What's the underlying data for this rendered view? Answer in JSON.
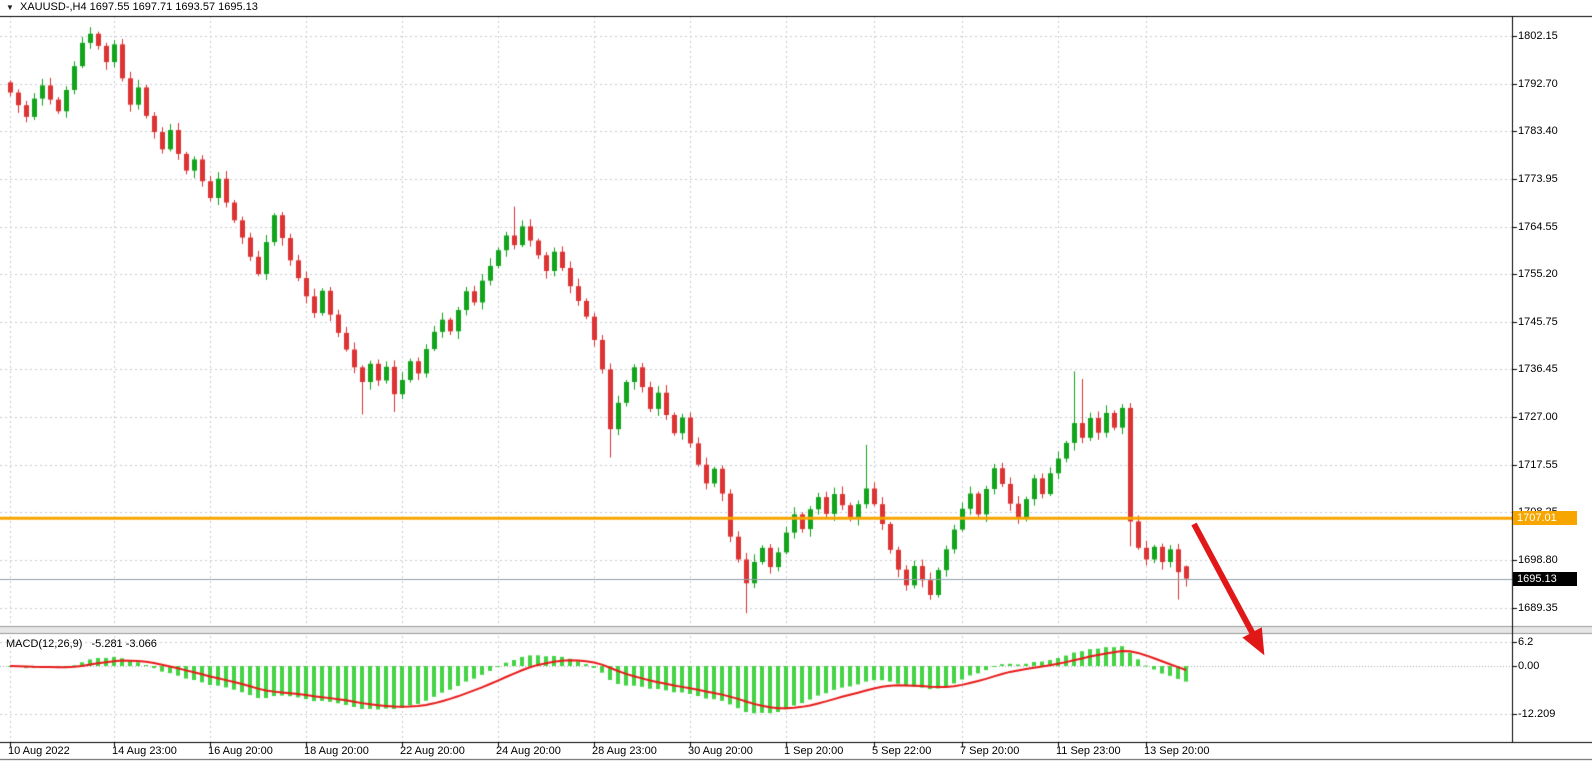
{
  "header": {
    "dropdown_icon": "▼",
    "symbol": "XAUUSD-,H4",
    "ohlc": "1697.55 1697.71 1693.57 1695.13"
  },
  "indicator": {
    "name": "MACD(12,26,9)",
    "values": "-5.281 -3.066"
  },
  "price_axis": {
    "ticks": [
      "1802.15",
      "1792.70",
      "1783.40",
      "1773.95",
      "1764.55",
      "1755.20",
      "1745.75",
      "1736.45",
      "1727.00",
      "1717.55",
      "1708.25",
      "1698.80",
      "1689.35"
    ],
    "hline_tag": "1707.01",
    "current_tag": "1695.13"
  },
  "macd_axis": {
    "ticks": [
      "6.2",
      "0.00",
      "-12.209"
    ]
  },
  "time_axis": {
    "labels": [
      {
        "text": "10 Aug 2022",
        "i": 0
      },
      {
        "text": "14 Aug 23:00",
        "i": 13
      },
      {
        "text": "16 Aug 20:00",
        "i": 25
      },
      {
        "text": "18 Aug 20:00",
        "i": 37
      },
      {
        "text": "22 Aug 20:00",
        "i": 49
      },
      {
        "text": "24 Aug 20:00",
        "i": 61
      },
      {
        "text": "28 Aug 23:00",
        "i": 73
      },
      {
        "text": "30 Aug 20:00",
        "i": 85
      },
      {
        "text": "1 Sep 20:00",
        "i": 97
      },
      {
        "text": "5 Sep 22:00",
        "i": 108
      },
      {
        "text": "7 Sep 20:00",
        "i": 119
      },
      {
        "text": "11 Sep 23:00",
        "i": 131
      },
      {
        "text": "13 Sep 20:00",
        "i": 142
      }
    ]
  },
  "chart_data": {
    "type": "candlestick",
    "title": "XAUUSD- H4 with MACD(12,26,9)",
    "symbol": "XAUUSD-",
    "timeframe": "H4",
    "ylim": [
      1685,
      1806
    ],
    "price_axis_top_value": 1802.15,
    "hline": 1707.01,
    "current_price": 1695.13,
    "last_bar_ohlc": [
      1697.55,
      1697.71,
      1693.57,
      1695.13
    ],
    "first_open": 1793.0,
    "closes": [
      1791.0,
      1788.5,
      1786.2,
      1789.8,
      1792.4,
      1789.6,
      1787.3,
      1791.5,
      1796.2,
      1800.8,
      1802.6,
      1800.2,
      1797.0,
      1800.5,
      1793.8,
      1788.6,
      1792.0,
      1786.4,
      1783.2,
      1779.8,
      1783.6,
      1778.9,
      1775.6,
      1777.8,
      1773.5,
      1770.2,
      1774.0,
      1769.3,
      1765.8,
      1762.4,
      1758.6,
      1755.2,
      1761.5,
      1766.8,
      1762.3,
      1757.9,
      1754.4,
      1750.8,
      1747.5,
      1751.9,
      1747.2,
      1743.6,
      1740.3,
      1736.8,
      1733.9,
      1737.5,
      1734.2,
      1736.9,
      1731.5,
      1734.3,
      1738.0,
      1735.6,
      1740.4,
      1743.8,
      1746.2,
      1743.9,
      1748.1,
      1751.8,
      1749.6,
      1753.9,
      1756.8,
      1759.9,
      1762.8,
      1760.9,
      1764.6,
      1761.8,
      1758.9,
      1755.8,
      1759.6,
      1756.4,
      1752.8,
      1749.9,
      1746.8,
      1742.2,
      1736.4,
      1724.6,
      1729.8,
      1733.9,
      1736.8,
      1732.9,
      1728.6,
      1731.8,
      1727.4,
      1723.8,
      1726.9,
      1721.8,
      1717.6,
      1713.9,
      1716.8,
      1711.9,
      1703.4,
      1698.9,
      1694.2,
      1698.4,
      1701.2,
      1697.4,
      1700.3,
      1704.2,
      1707.8,
      1704.9,
      1708.8,
      1711.2,
      1707.9,
      1711.8,
      1709.6,
      1706.9,
      1709.8,
      1712.9,
      1709.8,
      1705.9,
      1700.8,
      1696.9,
      1693.8,
      1697.6,
      1694.8,
      1691.9,
      1696.8,
      1700.9,
      1704.8,
      1708.9,
      1711.9,
      1707.8,
      1712.8,
      1716.9,
      1713.8,
      1709.9,
      1706.9,
      1710.8,
      1714.9,
      1711.8,
      1715.9,
      1718.8,
      1721.9,
      1725.8,
      1722.9,
      1726.8,
      1723.9,
      1727.8,
      1724.9,
      1728.8,
      1706.4,
      1701.2,
      1698.9,
      1701.4,
      1698.4,
      1700.9,
      1696.4,
      1695.13
    ],
    "wick_overrides": {
      "10": {
        "h": 1803.9
      },
      "44": {
        "l": 1727.5
      },
      "48": {
        "l": 1728.0
      },
      "63": {
        "h": 1768.5
      },
      "75": {
        "l": 1719.0
      },
      "92": {
        "l": 1688.3
      },
      "107": {
        "h": 1721.5
      },
      "133": {
        "h": 1736.0
      },
      "134": {
        "h": 1734.5
      },
      "140": {
        "l": 1701.5
      },
      "146": {
        "l": 1691.0
      }
    },
    "macd": {
      "label": "MACD(12,26,9)",
      "main_value": -5.281,
      "signal_value": -3.066,
      "scale": [
        6.2,
        0.0,
        -12.209
      ]
    },
    "colors": {
      "up": "#12a41c",
      "down": "#dd3333",
      "histogram": "#44d344",
      "signal_line": "#e81a1a",
      "hline": "#f7a600",
      "grid": "#c9cdd6",
      "current_price_line": "#8fa0aa",
      "axis_border": "#000000",
      "arrow": "#e01818"
    },
    "legend_position": "none",
    "grid": true
  },
  "annotation_arrow": {
    "color": "#e01818",
    "direction": "down-right"
  }
}
